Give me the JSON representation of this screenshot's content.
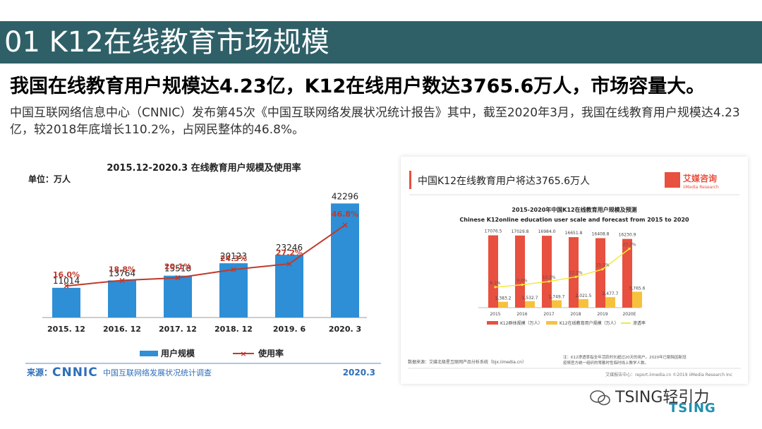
{
  "slide": {
    "title": "01 K12在线教育市场规模",
    "headline": "我国在线教育用户规模达4.23亿，K12在线用户数达3765.6万人，市场容量大。",
    "paragraph": "中国互联网络信息中心（CNNIC）发布第45次《中国互联网络发展状况统计报告》其中，截至2020年3月，我国在线教育用户规模达4.23亿，较2018年底增长110.2%，占网民整体的46.8%。"
  },
  "colors": {
    "title_bar": "#2f6068",
    "left_bar": "#2e8fd6",
    "left_line": "#c0392b",
    "right_bar_red": "#e8503f",
    "right_bar_yellow": "#f6c23e",
    "right_line": "#f2ea3a"
  },
  "chart_data": [
    {
      "type": "bar",
      "title": "2015.12-2020.3 在线教育用户规模及使用率",
      "unit_label": "单位：万人",
      "categories": [
        "2015. 12",
        "2016. 12",
        "2017. 12",
        "2018. 12",
        "2019. 6",
        "2020. 3"
      ],
      "series": [
        {
          "name": "用户规模",
          "type": "bar",
          "values": [
            11014,
            13764,
            15518,
            20123,
            23246,
            42296
          ],
          "labels": [
            "11014",
            "13764",
            "15518",
            "20123",
            "23246",
            "42296"
          ]
        },
        {
          "name": "使用率",
          "type": "line",
          "values": [
            16.0,
            18.8,
            20.1,
            24.3,
            27.2,
            46.8
          ],
          "labels": [
            "16.0%",
            "18.8%",
            "20.1%",
            "24.3%",
            "27.2%",
            "46.8%"
          ]
        }
      ],
      "ylim_bar": [
        0,
        45000
      ],
      "ylim_line": [
        0,
        100
      ],
      "legend_position": "bottom",
      "source_label": "来源：",
      "source_logo": "CNNIC",
      "source_name": "中国互联网络发展状况统计调查",
      "source_date": "2020.3"
    },
    {
      "type": "bar",
      "heading": "中国K12在线教育用户将达3765.6万人",
      "logo_cn": "艾媒咨询",
      "logo_en": "iiMedia Research",
      "title_cn": "2015-2020年中国K12在线教育用户规模及预测",
      "title_en": "Chinese K12online education user scale and forecast from 2015 to 2020",
      "categories": [
        "2015",
        "2016",
        "2017",
        "2018",
        "2019",
        "2020E"
      ],
      "series": [
        {
          "name": "K12群体规模（万人）",
          "type": "bar",
          "values": [
            17076.5,
            17029.8,
            16984.0,
            16651.8,
            16408.8,
            16230.9
          ],
          "labels": [
            "17076.5",
            "17029.8",
            "16984.0",
            "16651.8",
            "16408.8",
            "16230.9"
          ]
        },
        {
          "name": "K12在线教育用户规模（万人）",
          "type": "bar",
          "values": [
            1383.2,
            1532.7,
            1749.7,
            2021.5,
            2477.7,
            3765.6
          ],
          "labels": [
            "1,383.2",
            "1,532.7",
            "1,749.7",
            "2,021.5",
            "2,477.7",
            "3,765.6"
          ]
        },
        {
          "name": "渗透率",
          "type": "line",
          "values": [
            8.1,
            9.0,
            10.3,
            12.1,
            15.1,
            23.2
          ],
          "labels": [
            "8.1%",
            "9.0%",
            "10.3%",
            "12.1%",
            "15.1%",
            "23.2%"
          ]
        }
      ],
      "ylim_bar": [
        0,
        18000
      ],
      "ylim_line": [
        0,
        30
      ],
      "legend_position": "bottom",
      "data_source": "数据来源：艾媒北极星互联网产品分析系统（bjx.iimedia.cn）",
      "note_line1": "注：K12渗透率指全年活跃时长超过20天的用户。2020年已剔除因新冠",
      "note_line2": "疫情官方统一组织的零散时性临时线上教学人数。",
      "footer": "艾媒报告中心：report.iimedia.cn ©2019 iiMedia Research Inc"
    }
  ],
  "watermark": {
    "text": "TSING轻引力",
    "brand": "TSING"
  }
}
